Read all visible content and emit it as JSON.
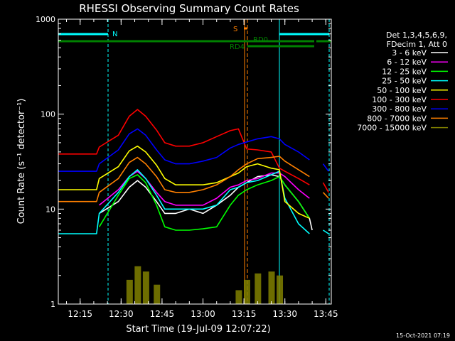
{
  "title": "RHESSI Observing Summary Count Rates",
  "footer_timestamp": "15-Oct-2021 07:19",
  "legend": {
    "header_line1": "Det 1,3,4,5,6,9,",
    "header_line2": "FDecim 1, Att 0"
  },
  "flags": [
    {
      "label": "N",
      "color": "#00ffff"
    },
    {
      "label": "S",
      "color": "#ff8000"
    },
    {
      "label": "RD0",
      "color": "#008000"
    },
    {
      "label": "RD4",
      "color": "#008000"
    }
  ],
  "chart_data": {
    "type": "line",
    "title": "RHESSI Observing Summary Count Rates",
    "xlabel": "Start Time (19-Jul-09 12:07:22)",
    "ylabel": "Count Rate (s⁻¹ detector⁻¹)",
    "y_scale": "log",
    "ylim": [
      1,
      1000
    ],
    "xlim": [
      "12:07",
      "13:47"
    ],
    "x_ticks": [
      "12:15",
      "12:30",
      "12:45",
      "13:00",
      "13:15",
      "13:30",
      "13:45"
    ],
    "y_ticks": [
      "1",
      "10",
      "100",
      "1000"
    ],
    "grid": false,
    "legend_position": "right",
    "x": [
      "12:07",
      "12:13",
      "12:21",
      "12:22",
      "12:29",
      "12:33",
      "12:36",
      "12:39",
      "12:43",
      "12:46",
      "12:50",
      "12:55",
      "13:00",
      "13:05",
      "13:10",
      "13:13",
      "13:16",
      "13:20",
      "13:25",
      "13:28",
      "13:30",
      "13:35",
      "13:39",
      "13:40",
      "13:44",
      "13:46"
    ],
    "series": [
      {
        "name": "3 - 6 keV",
        "color": "#ffffff",
        "values": [
          null,
          null,
          null,
          9,
          12,
          17,
          20,
          17,
          12,
          9,
          9,
          10,
          9,
          11,
          14,
          17,
          19,
          22,
          23,
          22,
          18,
          12,
          8,
          6,
          null,
          null
        ]
      },
      {
        "name": "6 - 12 keV",
        "color": "#ff00ff",
        "values": [
          null,
          null,
          null,
          11,
          16,
          22,
          25,
          21,
          15,
          12,
          11,
          11,
          11,
          13,
          17,
          18,
          20,
          21,
          24,
          24,
          22,
          16,
          13,
          null,
          null,
          null
        ]
      },
      {
        "name": "12 - 25 keV",
        "color": "#00ff00",
        "values": [
          null,
          null,
          null,
          6.5,
          14,
          21,
          23,
          19,
          11,
          6.5,
          6,
          6,
          6.2,
          6.5,
          11,
          14,
          16,
          18,
          20,
          22,
          18,
          12,
          8,
          null,
          null,
          null
        ]
      },
      {
        "name": "25 - 50 keV",
        "color": "#00ffff",
        "values": [
          5.5,
          5.5,
          5.5,
          9,
          15,
          22,
          26,
          21,
          14,
          10,
          10,
          10,
          10,
          11,
          16,
          17,
          19,
          20,
          23,
          25,
          13,
          7,
          5.5,
          null,
          6,
          5.5
        ]
      },
      {
        "name": "50 - 100 keV",
        "color": "#ffff00",
        "values": [
          16,
          16,
          16,
          21,
          28,
          41,
          46,
          40,
          29,
          21,
          18,
          18,
          18,
          19,
          22,
          24,
          28,
          30,
          27,
          26,
          12,
          9,
          8,
          null,
          null,
          null
        ]
      },
      {
        "name": "100 - 300 keV",
        "color": "#ff0000",
        "values": [
          38,
          38,
          38,
          45,
          60,
          95,
          112,
          95,
          68,
          50,
          46,
          46,
          50,
          58,
          67,
          70,
          43,
          42,
          40,
          27,
          25,
          21,
          18,
          null,
          19,
          15
        ]
      },
      {
        "name": "300 - 800 keV",
        "color": "#0000ff",
        "values": [
          25,
          25,
          25,
          30,
          42,
          62,
          70,
          60,
          42,
          33,
          30,
          30,
          32,
          35,
          44,
          48,
          51,
          55,
          58,
          55,
          48,
          40,
          33,
          null,
          30,
          25
        ]
      },
      {
        "name": "800 - 7000 keV",
        "color": "#ff8000",
        "values": [
          12,
          12,
          12,
          15,
          21,
          31,
          35,
          30,
          22,
          16,
          15,
          15,
          16,
          18,
          22,
          26,
          30,
          34,
          35,
          36,
          32,
          26,
          22,
          null,
          15,
          13
        ]
      },
      {
        "name": "7000 - 15000 keV",
        "color": "#808000",
        "values": [
          null,
          null,
          null,
          null,
          null,
          1.8,
          2.5,
          2.2,
          1.6,
          null,
          null,
          null,
          null,
          null,
          null,
          1.4,
          1.8,
          2.1,
          2.2,
          2.0,
          null,
          null,
          null,
          null,
          null,
          null
        ]
      }
    ]
  }
}
